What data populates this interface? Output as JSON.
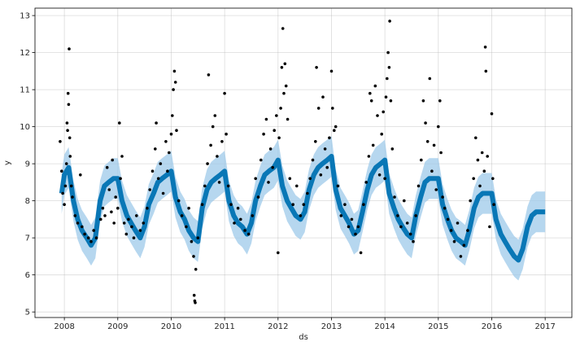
{
  "chart_data": {
    "type": "scatter",
    "title": "",
    "xlabel": "ds",
    "ylabel": "y",
    "xlim": [
      2007.45,
      2017.5
    ],
    "ylim": [
      4.85,
      13.2
    ],
    "x_ticks": [
      {
        "value": 2008,
        "label": "2008"
      },
      {
        "value": 2009,
        "label": "2009"
      },
      {
        "value": 2010,
        "label": "2010"
      },
      {
        "value": 2011,
        "label": "2011"
      },
      {
        "value": 2012,
        "label": "2012"
      },
      {
        "value": 2013,
        "label": "2013"
      },
      {
        "value": 2014,
        "label": "2014"
      },
      {
        "value": 2015,
        "label": "2015"
      },
      {
        "value": 2016,
        "label": "2016"
      },
      {
        "value": 2017,
        "label": "2017"
      }
    ],
    "y_ticks": [
      {
        "value": 5,
        "label": "5"
      },
      {
        "value": 6,
        "label": "6"
      },
      {
        "value": 7,
        "label": "7"
      },
      {
        "value": 8,
        "label": "8"
      },
      {
        "value": 9,
        "label": "9"
      },
      {
        "value": 10,
        "label": "10"
      },
      {
        "value": 11,
        "label": "11"
      },
      {
        "value": 12,
        "label": "12"
      },
      {
        "value": 13,
        "label": "13"
      }
    ],
    "grid": true,
    "colors": {
      "observed": "#000000",
      "forecast": "#0072B2",
      "interval": "#9ecae9"
    },
    "forecast": {
      "x": [
        2007.95,
        2008.0,
        2008.08,
        2008.17,
        2008.25,
        2008.33,
        2008.42,
        2008.5,
        2008.58,
        2008.67,
        2008.75,
        2008.83,
        2008.92,
        2009.0,
        2009.08,
        2009.17,
        2009.25,
        2009.33,
        2009.42,
        2009.5,
        2009.58,
        2009.67,
        2009.75,
        2009.83,
        2009.92,
        2010.0,
        2010.08,
        2010.17,
        2010.25,
        2010.33,
        2010.42,
        2010.5,
        2010.58,
        2010.67,
        2010.75,
        2010.83,
        2010.92,
        2011.0,
        2011.08,
        2011.17,
        2011.25,
        2011.33,
        2011.42,
        2011.5,
        2011.58,
        2011.67,
        2011.75,
        2011.83,
        2011.92,
        2012.0,
        2012.08,
        2012.17,
        2012.25,
        2012.33,
        2012.42,
        2012.5,
        2012.58,
        2012.67,
        2012.75,
        2012.83,
        2012.92,
        2013.0,
        2013.08,
        2013.17,
        2013.25,
        2013.33,
        2013.42,
        2013.5,
        2013.58,
        2013.67,
        2013.75,
        2013.83,
        2013.92,
        2014.0,
        2014.08,
        2014.17,
        2014.25,
        2014.33,
        2014.42,
        2014.5,
        2014.58,
        2014.67,
        2014.75,
        2014.83,
        2014.92,
        2015.0,
        2015.08,
        2015.17,
        2015.25,
        2015.33,
        2015.42,
        2015.5,
        2015.58,
        2015.67,
        2015.75,
        2015.83,
        2015.92,
        2016.0,
        2016.08,
        2016.17,
        2016.25,
        2016.33,
        2016.42,
        2016.5,
        2016.58,
        2016.67,
        2016.75,
        2016.83,
        2016.92,
        2017.0
      ],
      "yhat": [
        8.2,
        8.7,
        8.9,
        8.0,
        7.5,
        7.2,
        7.0,
        6.8,
        7.0,
        8.0,
        8.4,
        8.5,
        8.6,
        8.6,
        8.0,
        7.6,
        7.4,
        7.2,
        7.0,
        7.3,
        7.9,
        8.2,
        8.5,
        8.6,
        8.7,
        8.8,
        8.1,
        7.7,
        7.5,
        7.2,
        7.0,
        6.9,
        7.8,
        8.3,
        8.5,
        8.6,
        8.7,
        8.8,
        8.0,
        7.6,
        7.4,
        7.3,
        7.1,
        7.4,
        8.0,
        8.4,
        8.7,
        8.8,
        8.9,
        9.1,
        8.4,
        8.0,
        7.8,
        7.6,
        7.5,
        7.7,
        8.3,
        8.7,
        8.9,
        9.0,
        9.1,
        9.2,
        8.3,
        7.8,
        7.6,
        7.4,
        7.1,
        7.2,
        7.7,
        8.3,
        8.7,
        8.9,
        9.0,
        9.1,
        8.2,
        7.8,
        7.5,
        7.3,
        7.1,
        7.0,
        7.6,
        8.1,
        8.5,
        8.6,
        8.6,
        8.6,
        7.9,
        7.5,
        7.2,
        7.0,
        6.9,
        6.8,
        7.2,
        7.8,
        8.1,
        8.2,
        8.2,
        8.2,
        7.5,
        7.1,
        6.9,
        6.7,
        6.5,
        6.4,
        6.7,
        7.3,
        7.6,
        7.7,
        7.7,
        7.7
      ],
      "interval_halfwidth": 0.55
    },
    "observed": [
      [
        2007.92,
        9.6
      ],
      [
        2007.95,
        8.8
      ],
      [
        2007.97,
        8.2
      ],
      [
        2008.0,
        7.9
      ],
      [
        2008.02,
        8.4
      ],
      [
        2008.04,
        9.0
      ],
      [
        2008.05,
        10.1
      ],
      [
        2008.06,
        9.9
      ],
      [
        2008.07,
        10.9
      ],
      [
        2008.08,
        10.6
      ],
      [
        2008.09,
        12.1
      ],
      [
        2008.1,
        9.7
      ],
      [
        2008.11,
        9.2
      ],
      [
        2008.13,
        8.4
      ],
      [
        2008.15,
        8.1
      ],
      [
        2008.2,
        7.6
      ],
      [
        2008.25,
        7.4
      ],
      [
        2008.3,
        8.7
      ],
      [
        2008.33,
        7.3
      ],
      [
        2008.38,
        7.1
      ],
      [
        2008.45,
        7.0
      ],
      [
        2008.5,
        6.9
      ],
      [
        2008.55,
        7.2
      ],
      [
        2008.6,
        7.0
      ],
      [
        2008.68,
        7.5
      ],
      [
        2008.72,
        7.8
      ],
      [
        2008.76,
        7.6
      ],
      [
        2008.8,
        8.9
      ],
      [
        2008.84,
        8.3
      ],
      [
        2008.88,
        7.7
      ],
      [
        2008.9,
        9.1
      ],
      [
        2008.93,
        7.4
      ],
      [
        2008.96,
        8.1
      ],
      [
        2009.0,
        7.8
      ],
      [
        2009.03,
        10.1
      ],
      [
        2009.05,
        8.6
      ],
      [
        2009.08,
        9.2
      ],
      [
        2009.12,
        7.4
      ],
      [
        2009.16,
        7.1
      ],
      [
        2009.2,
        7.5
      ],
      [
        2009.26,
        7.3
      ],
      [
        2009.3,
        7.0
      ],
      [
        2009.35,
        7.6
      ],
      [
        2009.42,
        7.2
      ],
      [
        2009.48,
        7.4
      ],
      [
        2009.55,
        7.8
      ],
      [
        2009.6,
        8.3
      ],
      [
        2009.65,
        8.8
      ],
      [
        2009.7,
        9.4
      ],
      [
        2009.72,
        10.1
      ],
      [
        2009.76,
        8.6
      ],
      [
        2009.8,
        9.0
      ],
      [
        2009.85,
        8.2
      ],
      [
        2009.9,
        9.6
      ],
      [
        2009.93,
        8.8
      ],
      [
        2009.96,
        9.3
      ],
      [
        2010.0,
        9.8
      ],
      [
        2010.02,
        10.3
      ],
      [
        2010.04,
        11.0
      ],
      [
        2010.06,
        11.5
      ],
      [
        2010.08,
        11.2
      ],
      [
        2010.1,
        9.9
      ],
      [
        2010.14,
        8.0
      ],
      [
        2010.2,
        7.6
      ],
      [
        2010.28,
        7.3
      ],
      [
        2010.33,
        7.8
      ],
      [
        2010.38,
        6.9
      ],
      [
        2010.42,
        6.5
      ],
      [
        2010.43,
        5.45
      ],
      [
        2010.44,
        5.3
      ],
      [
        2010.45,
        5.25
      ],
      [
        2010.46,
        6.15
      ],
      [
        2010.5,
        7.0
      ],
      [
        2010.58,
        7.9
      ],
      [
        2010.63,
        8.4
      ],
      [
        2010.68,
        9.0
      ],
      [
        2010.7,
        11.4
      ],
      [
        2010.74,
        9.5
      ],
      [
        2010.78,
        10.0
      ],
      [
        2010.82,
        10.3
      ],
      [
        2010.86,
        9.2
      ],
      [
        2010.9,
        8.5
      ],
      [
        2010.95,
        9.6
      ],
      [
        2011.0,
        10.9
      ],
      [
        2011.03,
        9.8
      ],
      [
        2011.07,
        8.4
      ],
      [
        2011.12,
        7.9
      ],
      [
        2011.18,
        7.4
      ],
      [
        2011.25,
        7.8
      ],
      [
        2011.3,
        7.5
      ],
      [
        2011.38,
        7.2
      ],
      [
        2011.45,
        7.1
      ],
      [
        2011.52,
        7.6
      ],
      [
        2011.58,
        8.6
      ],
      [
        2011.63,
        8.1
      ],
      [
        2011.68,
        9.1
      ],
      [
        2011.73,
        9.8
      ],
      [
        2011.78,
        10.2
      ],
      [
        2011.82,
        8.5
      ],
      [
        2011.86,
        9.4
      ],
      [
        2011.9,
        8.9
      ],
      [
        2011.93,
        9.9
      ],
      [
        2011.97,
        10.3
      ],
      [
        2012.0,
        6.6
      ],
      [
        2012.02,
        9.7
      ],
      [
        2012.05,
        10.5
      ],
      [
        2012.07,
        11.6
      ],
      [
        2012.09,
        12.65
      ],
      [
        2012.11,
        10.9
      ],
      [
        2012.13,
        11.7
      ],
      [
        2012.15,
        11.1
      ],
      [
        2012.18,
        10.2
      ],
      [
        2012.22,
        8.6
      ],
      [
        2012.28,
        7.9
      ],
      [
        2012.35,
        8.4
      ],
      [
        2012.42,
        7.6
      ],
      [
        2012.48,
        7.9
      ],
      [
        2012.55,
        8.2
      ],
      [
        2012.6,
        8.6
      ],
      [
        2012.65,
        9.1
      ],
      [
        2012.7,
        9.6
      ],
      [
        2012.72,
        11.6
      ],
      [
        2012.76,
        10.5
      ],
      [
        2012.8,
        8.7
      ],
      [
        2012.84,
        10.8
      ],
      [
        2012.88,
        9.4
      ],
      [
        2012.92,
        8.9
      ],
      [
        2012.96,
        9.7
      ],
      [
        2013.0,
        11.5
      ],
      [
        2013.02,
        10.5
      ],
      [
        2013.05,
        9.9
      ],
      [
        2013.08,
        10.0
      ],
      [
        2013.12,
        8.4
      ],
      [
        2013.18,
        7.6
      ],
      [
        2013.25,
        7.9
      ],
      [
        2013.32,
        7.3
      ],
      [
        2013.38,
        7.5
      ],
      [
        2013.45,
        7.1
      ],
      [
        2013.5,
        7.3
      ],
      [
        2013.55,
        6.6
      ],
      [
        2013.6,
        7.9
      ],
      [
        2013.65,
        8.5
      ],
      [
        2013.7,
        9.2
      ],
      [
        2013.72,
        10.9
      ],
      [
        2013.75,
        10.7
      ],
      [
        2013.78,
        9.5
      ],
      [
        2013.82,
        11.1
      ],
      [
        2013.86,
        10.3
      ],
      [
        2013.9,
        8.7
      ],
      [
        2013.94,
        9.8
      ],
      [
        2013.97,
        10.4
      ],
      [
        2014.0,
        8.6
      ],
      [
        2014.02,
        10.8
      ],
      [
        2014.04,
        11.3
      ],
      [
        2014.06,
        12.0
      ],
      [
        2014.08,
        11.6
      ],
      [
        2014.09,
        12.85
      ],
      [
        2014.11,
        10.7
      ],
      [
        2014.14,
        9.4
      ],
      [
        2014.18,
        8.1
      ],
      [
        2014.24,
        7.6
      ],
      [
        2014.3,
        7.3
      ],
      [
        2014.36,
        8.0
      ],
      [
        2014.42,
        7.4
      ],
      [
        2014.48,
        7.1
      ],
      [
        2014.53,
        6.9
      ],
      [
        2014.58,
        7.6
      ],
      [
        2014.63,
        8.4
      ],
      [
        2014.68,
        9.1
      ],
      [
        2014.72,
        10.7
      ],
      [
        2014.76,
        10.1
      ],
      [
        2014.8,
        9.6
      ],
      [
        2014.84,
        11.3
      ],
      [
        2014.88,
        8.8
      ],
      [
        2014.92,
        9.5
      ],
      [
        2014.96,
        8.3
      ],
      [
        2015.0,
        10.0
      ],
      [
        2015.03,
        10.7
      ],
      [
        2015.05,
        9.3
      ],
      [
        2015.08,
        8.1
      ],
      [
        2015.12,
        7.8
      ],
      [
        2015.18,
        7.5
      ],
      [
        2015.24,
        7.2
      ],
      [
        2015.3,
        6.9
      ],
      [
        2015.36,
        7.4
      ],
      [
        2015.42,
        6.5
      ],
      [
        2015.48,
        6.8
      ],
      [
        2015.55,
        7.2
      ],
      [
        2015.6,
        8.0
      ],
      [
        2015.66,
        8.6
      ],
      [
        2015.7,
        9.7
      ],
      [
        2015.74,
        9.1
      ],
      [
        2015.78,
        8.4
      ],
      [
        2015.82,
        9.3
      ],
      [
        2015.86,
        8.8
      ],
      [
        2015.88,
        12.15
      ],
      [
        2015.89,
        11.5
      ],
      [
        2015.92,
        9.2
      ],
      [
        2015.96,
        7.3
      ],
      [
        2016.0,
        10.35
      ],
      [
        2016.02,
        8.6
      ],
      [
        2016.04,
        7.9
      ]
    ]
  }
}
